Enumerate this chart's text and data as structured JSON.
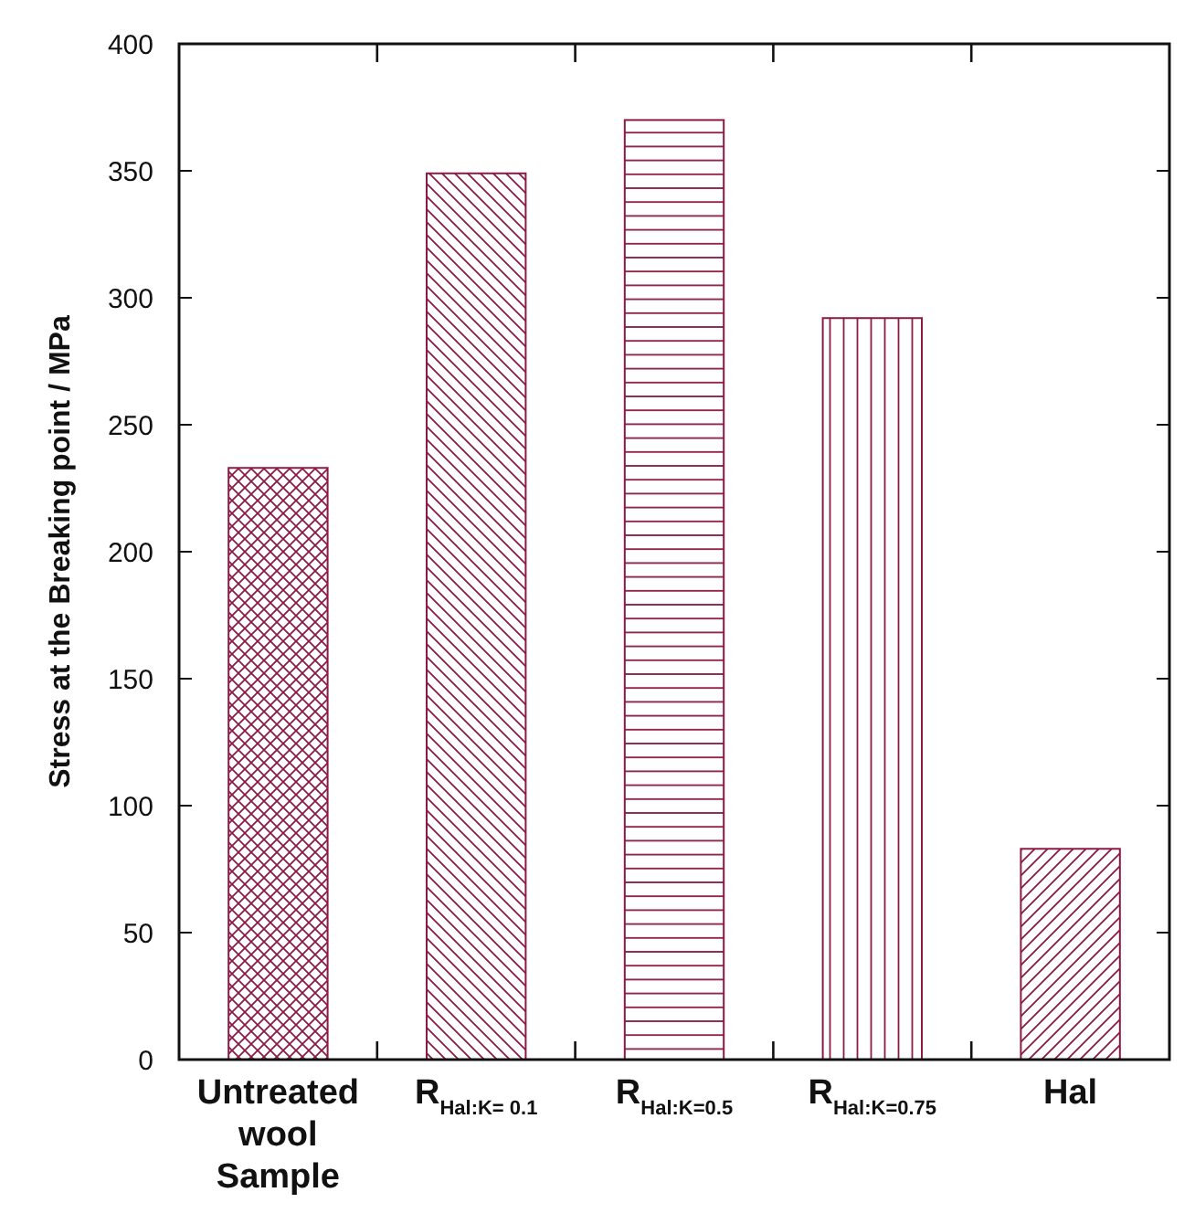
{
  "chart_data": {
    "type": "bar",
    "ylabel": "Stress at the Breaking point / MPa",
    "categories": [
      "Untreated wool Sample",
      "R$_{Hal:K= 0.1}$",
      "R$_{Hal:K=0.5}$",
      "R$_{Hal:K=0.75}$",
      "Hal"
    ],
    "values": [
      233,
      349,
      370,
      292,
      83
    ],
    "colors": [
      "#8b1a45",
      "#8b1a45",
      "#8b1a45",
      "#8b1a45",
      "#8b1a45"
    ],
    "ylim": [
      0,
      400
    ],
    "yticks": [
      0,
      50,
      100,
      150,
      200,
      250,
      300,
      350,
      400
    ],
    "grid": false
  }
}
